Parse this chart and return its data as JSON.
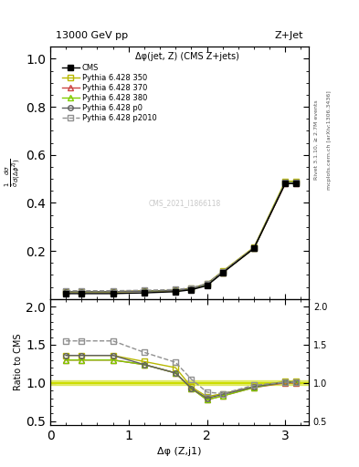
{
  "title_left": "13000 GeV pp",
  "title_right": "Z+Jet",
  "annotation": "Δφ(jet, Z) (CMS Z+jets)",
  "watermark": "CMS_2021_I1866118",
  "xlabel": "Δφ (Z,j1)",
  "ylabel": "$\\frac{1}{\\bar{\\sigma}}\\frac{d\\sigma}{d(\\Delta\\phi^{ZJ})}$",
  "ylabel_ratio": "Ratio to CMS",
  "right_label1": "Rivet 3.1.10, ≥ 2.7M events",
  "right_label2": "mcplots.cern.ch [arXiv:1306.3436]",
  "x_data": [
    0.2,
    0.4,
    0.8,
    1.2,
    1.6,
    1.8,
    2.0,
    2.2,
    2.6,
    3.0,
    3.14
  ],
  "cms_y": [
    0.022,
    0.022,
    0.022,
    0.025,
    0.03,
    0.038,
    0.055,
    0.108,
    0.21,
    0.48,
    0.48
  ],
  "p350_y": [
    0.03,
    0.03,
    0.03,
    0.032,
    0.036,
    0.044,
    0.064,
    0.115,
    0.215,
    0.49,
    0.49
  ],
  "p370_y": [
    0.03,
    0.03,
    0.03,
    0.032,
    0.035,
    0.042,
    0.06,
    0.11,
    0.21,
    0.48,
    0.48
  ],
  "p380_y": [
    0.03,
    0.03,
    0.03,
    0.032,
    0.035,
    0.042,
    0.06,
    0.11,
    0.21,
    0.485,
    0.485
  ],
  "p0_y": [
    0.03,
    0.03,
    0.03,
    0.032,
    0.035,
    0.042,
    0.062,
    0.112,
    0.212,
    0.483,
    0.483
  ],
  "p2010_y": [
    0.034,
    0.034,
    0.034,
    0.036,
    0.039,
    0.046,
    0.064,
    0.114,
    0.212,
    0.484,
    0.484
  ],
  "ratio_p350": [
    1.36,
    1.36,
    1.36,
    1.28,
    1.2,
    0.95,
    0.82,
    0.86,
    0.95,
    1.02,
    1.02
  ],
  "ratio_p370": [
    1.3,
    1.3,
    1.3,
    1.24,
    1.13,
    0.93,
    0.78,
    0.83,
    0.94,
    1.0,
    1.0
  ],
  "ratio_p380": [
    1.3,
    1.3,
    1.3,
    1.24,
    1.13,
    0.93,
    0.78,
    0.83,
    0.94,
    1.01,
    1.01
  ],
  "ratio_p0": [
    1.36,
    1.36,
    1.36,
    1.24,
    1.13,
    0.93,
    0.8,
    0.85,
    0.95,
    1.01,
    1.01
  ],
  "ratio_p2010": [
    1.55,
    1.55,
    1.55,
    1.4,
    1.27,
    1.05,
    0.88,
    0.86,
    0.97,
    1.01,
    1.01
  ],
  "color_350": "#b8b800",
  "color_370": "#cc4444",
  "color_380": "#80cc00",
  "color_p0": "#606060",
  "color_p2010": "#909090",
  "color_cms": "#000000",
  "color_ref_band": "#ccdd00",
  "xlim": [
    0.0,
    3.3
  ],
  "ylim_main": [
    0.0,
    1.05
  ],
  "ylim_ratio": [
    0.45,
    2.1
  ],
  "yticks_main": [
    0.2,
    0.4,
    0.6,
    0.8,
    1.0
  ],
  "yticks_ratio": [
    0.5,
    1.0,
    1.5,
    2.0
  ],
  "xticks": [
    0,
    1,
    2,
    3
  ]
}
